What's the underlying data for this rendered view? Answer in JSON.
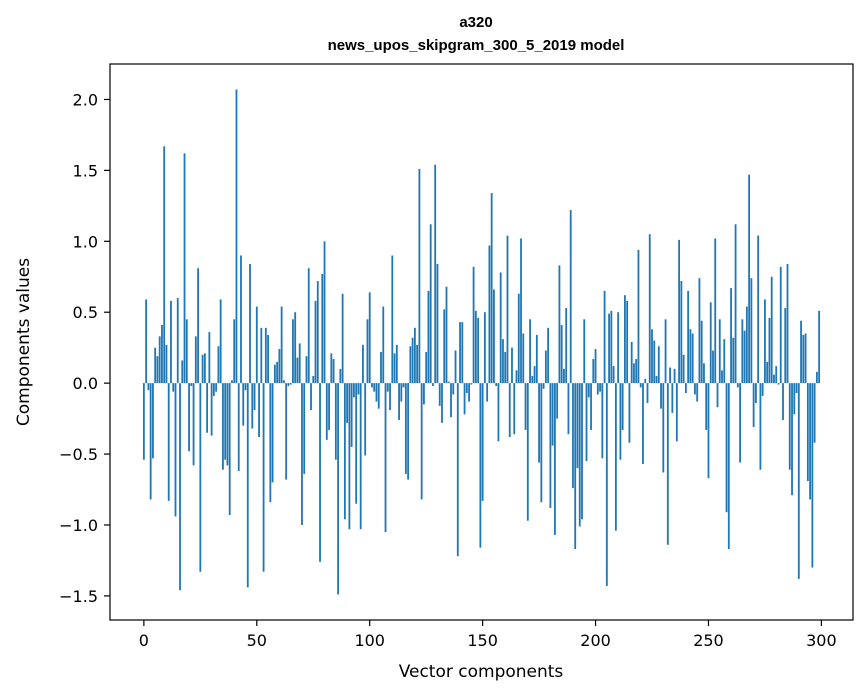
{
  "chart_data": {
    "type": "bar",
    "title": "a320",
    "subtitle": "news_upos_skipgram_300_5_2019 model",
    "xlabel": "Vector components",
    "ylabel": "Components values",
    "xlim": [
      -15,
      314
    ],
    "ylim": [
      -1.67,
      2.25
    ],
    "xticks": [
      0,
      50,
      100,
      150,
      200,
      250,
      300
    ],
    "xtick_labels": [
      "0",
      "50",
      "100",
      "150",
      "200",
      "250",
      "300"
    ],
    "yticks": [
      -1.5,
      -1.0,
      -0.5,
      0.0,
      0.5,
      1.0,
      1.5,
      2.0
    ],
    "ytick_labels": [
      "−1.5",
      "−1.0",
      "−0.5",
      "0.0",
      "0.5",
      "1.0",
      "1.5",
      "2.0"
    ],
    "grid": false,
    "bar_color": "#1f77b4",
    "series": [
      {
        "values": [
          -0.54,
          0.59,
          -0.05,
          -0.82,
          -0.53,
          0.25,
          0.19,
          0.33,
          0.41,
          1.67,
          0.27,
          -0.83,
          0.58,
          -0.06,
          -0.94,
          0.6,
          -1.46,
          0.16,
          1.62,
          0.45,
          -0.48,
          -0.02,
          -0.58,
          0.33,
          0.81,
          -1.33,
          0.2,
          0.21,
          -0.35,
          0.36,
          -0.37,
          -0.09,
          -0.06,
          0.26,
          0.59,
          -0.61,
          -0.54,
          -0.58,
          -0.93,
          0.02,
          0.45,
          2.07,
          -0.62,
          0.9,
          -0.3,
          -0.05,
          -1.44,
          0.84,
          -0.32,
          -0.19,
          0.54,
          -0.38,
          0.39,
          -1.33,
          0.39,
          0.34,
          -0.84,
          -0.7,
          0.13,
          0.15,
          0.24,
          0.54,
          0.02,
          -0.68,
          -0.02,
          -0.01,
          0.45,
          0.5,
          0.18,
          0.28,
          -1.0,
          -0.64,
          0.19,
          0.81,
          -0.19,
          0.05,
          0.58,
          0.72,
          -1.26,
          0.77,
          1.0,
          -0.4,
          -0.33,
          0.21,
          0.17,
          -0.54,
          -1.49,
          0.1,
          0.63,
          -0.96,
          -0.28,
          -1.03,
          -0.45,
          -0.1,
          -0.85,
          -0.08,
          -1.03,
          0.27,
          -0.51,
          0.45,
          0.64,
          -0.03,
          -0.06,
          -0.13,
          -0.18,
          0.22,
          0.54,
          -1.05,
          -0.06,
          -0.19,
          0.9,
          0.21,
          0.27,
          -0.26,
          -0.13,
          -0.03,
          -0.64,
          -0.68,
          0.26,
          0.32,
          0.39,
          0.27,
          1.51,
          -0.82,
          -0.15,
          0.22,
          0.65,
          1.12,
          -0.02,
          1.54,
          0.84,
          -0.16,
          -0.28,
          0.52,
          0.68,
          0.01,
          -0.24,
          -0.08,
          0.23,
          -1.22,
          0.43,
          0.43,
          -0.22,
          -0.07,
          -0.13,
          -0.01,
          0.82,
          0.51,
          0.46,
          -1.16,
          -0.83,
          0.5,
          -0.13,
          0.97,
          1.34,
          0.66,
          -0.02,
          -0.41,
          0.78,
          0.31,
          0.22,
          1.04,
          -0.38,
          0.25,
          -0.36,
          0.09,
          0.63,
          1.02,
          0.35,
          -0.33,
          -0.97,
          0.45,
          0.05,
          0.12,
          0.34,
          -0.56,
          -0.84,
          -0.04,
          0.23,
          0.39,
          -0.88,
          -0.44,
          -1.07,
          -0.25,
          0.83,
          0.41,
          0.1,
          0.53,
          -0.36,
          1.22,
          -0.74,
          -1.17,
          -0.6,
          -1.01,
          -0.96,
          0.45,
          -0.55,
          -0.1,
          -0.33,
          0.17,
          0.24,
          -0.08,
          -0.06,
          -0.53,
          0.65,
          -1.43,
          0.49,
          0.51,
          0.12,
          -1.04,
          0.5,
          -0.54,
          -0.33,
          0.62,
          0.58,
          -0.42,
          0.29,
          0.14,
          0.17,
          0.94,
          -0.03,
          -0.57,
          0.03,
          -0.14,
          1.05,
          0.38,
          0.3,
          0.05,
          0.26,
          -0.18,
          -0.63,
          0.45,
          -1.14,
          0.11,
          -0.21,
          0.1,
          -0.41,
          1.01,
          0.72,
          0.2,
          -0.07,
          0.65,
          0.38,
          0.35,
          -0.08,
          -0.13,
          0.74,
          0.44,
          0.14,
          -0.33,
          -0.67,
          0.57,
          0.23,
          1.02,
          -0.17,
          0.45,
          0.09,
          0.31,
          -0.91,
          -1.17,
          0.67,
          0.32,
          1.12,
          -0.03,
          -0.56,
          0.45,
          0.37,
          0.54,
          1.47,
          0.74,
          -0.31,
          -0.14,
          1.04,
          -0.61,
          -0.09,
          0.59,
          0.15,
          0.46,
          0.75,
          0.06,
          0.12,
          -0.01,
          0.82,
          -0.26,
          0.53,
          0.84,
          -0.61,
          -0.79,
          -0.22,
          -0.07,
          -1.38,
          0.44,
          0.34,
          0.35,
          -0.69,
          -0.82,
          -1.3,
          -0.42,
          0.08,
          0.51
        ]
      }
    ]
  }
}
